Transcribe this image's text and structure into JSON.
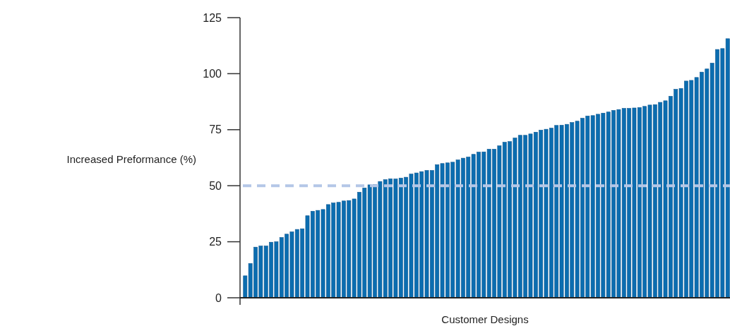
{
  "chart_data": {
    "type": "bar",
    "xlabel": "Customer Designs",
    "ylabel": "Increased Preformance (%)",
    "categories": [
      null,
      null,
      null,
      null,
      null,
      null,
      null,
      null,
      null,
      null,
      null,
      null,
      null,
      null,
      null,
      null,
      null,
      null,
      null,
      null,
      null,
      null,
      null,
      null,
      null,
      null,
      null,
      null,
      null,
      null,
      null,
      null,
      null,
      null,
      null,
      null,
      null,
      null,
      null,
      null,
      null,
      null,
      null,
      null,
      null,
      null,
      null,
      null,
      null,
      null,
      null,
      null,
      null,
      null,
      null,
      null,
      null,
      null,
      null,
      null,
      null,
      null,
      null,
      null,
      null,
      null,
      null,
      null,
      null,
      null,
      null,
      null,
      null,
      null,
      null,
      null,
      null,
      null,
      null,
      null,
      null,
      null,
      null,
      null,
      null,
      null,
      null,
      null,
      null,
      null,
      null,
      null,
      null,
      null
    ],
    "values": [
      9.8,
      15.3,
      22.6,
      23.1,
      23.1,
      24.8,
      25,
      26.9,
      28.4,
      29.4,
      30.5,
      30.8,
      36.6,
      38.6,
      39,
      39.4,
      41.6,
      42.3,
      42.6,
      43.2,
      43.4,
      44.1,
      47.1,
      49,
      50.4,
      50.5,
      51.9,
      52.7,
      53.1,
      53,
      53.4,
      53.8,
      55.2,
      55.7,
      56.3,
      56.8,
      56.8,
      59.4,
      59.9,
      60.2,
      60.5,
      61.5,
      62.3,
      62.8,
      64,
      65,
      65.1,
      66.3,
      66.3,
      67.8,
      69.4,
      69.7,
      71.3,
      72.5,
      72.5,
      73.1,
      73.9,
      74.8,
      75.2,
      75.7,
      76.9,
      77,
      77.4,
      78.2,
      78.8,
      80.1,
      81.1,
      81.3,
      81.9,
      82.4,
      82.9,
      83.6,
      84,
      84.5,
      84.5,
      84.7,
      84.9,
      85.4,
      86,
      86.2,
      87.2,
      87.9,
      89.9,
      93,
      93.4,
      96.7,
      97,
      98.3,
      100.7,
      102.1,
      104.7,
      110.8,
      111.2,
      115.6
    ],
    "color": "#0b6db0",
    "ylim": [
      0,
      125
    ],
    "yticks": [
      0,
      25,
      50,
      75,
      100,
      125
    ],
    "ref_lines": [
      {
        "axis": "y",
        "value": 50,
        "color": "#b4c7e7",
        "line_style": "dashed"
      }
    ]
  }
}
